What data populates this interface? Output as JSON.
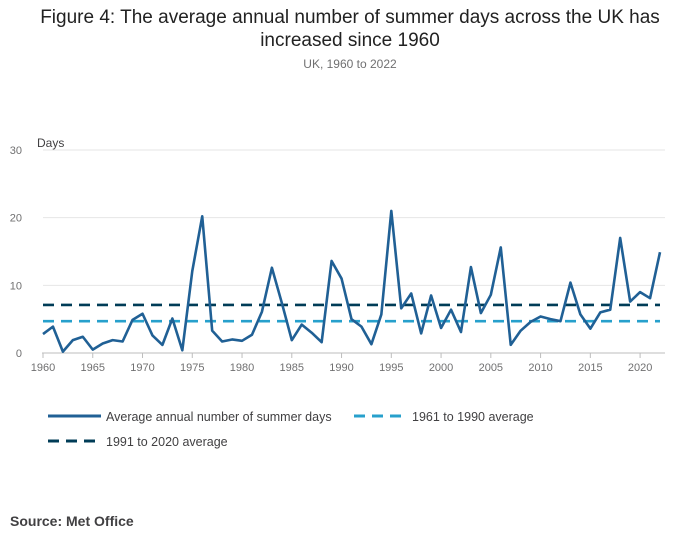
{
  "title": "Figure 4: The average annual number of summer days across the UK has increased since 1960",
  "subtitle": "UK, 1960 to 2022",
  "source": "Source: Met Office",
  "colors": {
    "series_main": "#206095",
    "series_1961_1990": "#27a0cc",
    "series_1991_2020": "#003c57",
    "grid": "#e6e6e6",
    "axis": "#bdbdbd"
  },
  "chart_data": {
    "type": "line",
    "title": "Figure 4: The average annual number of summer days across the UK has increased since 1960",
    "subtitle": "UK, 1960 to 2022",
    "ylabel": "Days",
    "xlabel": "",
    "ylim": [
      0,
      30
    ],
    "xlim": [
      1960,
      2022
    ],
    "yticks": [
      0,
      10,
      20,
      30
    ],
    "xticks": [
      1960,
      1965,
      1970,
      1975,
      1980,
      1985,
      1990,
      1995,
      2000,
      2005,
      2010,
      2015,
      2020
    ],
    "grid": true,
    "legend_position": "bottom",
    "x": [
      1960,
      1961,
      1962,
      1963,
      1964,
      1965,
      1966,
      1967,
      1968,
      1969,
      1970,
      1971,
      1972,
      1973,
      1974,
      1975,
      1976,
      1977,
      1978,
      1979,
      1980,
      1981,
      1982,
      1983,
      1984,
      1985,
      1986,
      1987,
      1988,
      1989,
      1990,
      1991,
      1992,
      1993,
      1994,
      1995,
      1996,
      1997,
      1998,
      1999,
      2000,
      2001,
      2002,
      2003,
      2004,
      2005,
      2006,
      2007,
      2008,
      2009,
      2010,
      2011,
      2012,
      2013,
      2014,
      2015,
      2016,
      2017,
      2018,
      2019,
      2020,
      2021,
      2022
    ],
    "series": [
      {
        "name": "Average annual number of summer days",
        "style": "solid",
        "values": [
          2.8,
          3.9,
          0.2,
          1.9,
          2.4,
          0.5,
          1.4,
          1.9,
          1.7,
          4.9,
          5.8,
          2.6,
          1.2,
          5.1,
          0.4,
          12.1,
          20.2,
          3.3,
          1.7,
          2.0,
          1.8,
          2.7,
          6.1,
          12.6,
          7.4,
          1.9,
          4.2,
          3.0,
          1.6,
          13.6,
          11.0,
          5.0,
          3.9,
          1.3,
          5.7,
          21.0,
          6.6,
          8.8,
          2.9,
          8.5,
          3.7,
          6.4,
          3.1,
          12.7,
          5.9,
          8.6,
          15.6,
          1.2,
          3.3,
          4.6,
          5.4,
          5.0,
          4.7,
          10.4,
          5.7,
          3.6,
          6.0,
          6.4,
          17.0,
          7.6,
          9.0,
          8.1,
          14.9
        ]
      },
      {
        "name": "1961 to 1990 average",
        "style": "dashed",
        "values": [
          4.7,
          4.7,
          4.7,
          4.7,
          4.7,
          4.7,
          4.7,
          4.7,
          4.7,
          4.7,
          4.7,
          4.7,
          4.7,
          4.7,
          4.7,
          4.7,
          4.7,
          4.7,
          4.7,
          4.7,
          4.7,
          4.7,
          4.7,
          4.7,
          4.7,
          4.7,
          4.7,
          4.7,
          4.7,
          4.7,
          4.7,
          4.7,
          4.7,
          4.7,
          4.7,
          4.7,
          4.7,
          4.7,
          4.7,
          4.7,
          4.7,
          4.7,
          4.7,
          4.7,
          4.7,
          4.7,
          4.7,
          4.7,
          4.7,
          4.7,
          4.7,
          4.7,
          4.7,
          4.7,
          4.7,
          4.7,
          4.7,
          4.7,
          4.7,
          4.7,
          4.7,
          4.7,
          4.7
        ]
      },
      {
        "name": "1991 to 2020 average",
        "style": "dashed",
        "values": [
          7.1,
          7.1,
          7.1,
          7.1,
          7.1,
          7.1,
          7.1,
          7.1,
          7.1,
          7.1,
          7.1,
          7.1,
          7.1,
          7.1,
          7.1,
          7.1,
          7.1,
          7.1,
          7.1,
          7.1,
          7.1,
          7.1,
          7.1,
          7.1,
          7.1,
          7.1,
          7.1,
          7.1,
          7.1,
          7.1,
          7.1,
          7.1,
          7.1,
          7.1,
          7.1,
          7.1,
          7.1,
          7.1,
          7.1,
          7.1,
          7.1,
          7.1,
          7.1,
          7.1,
          7.1,
          7.1,
          7.1,
          7.1,
          7.1,
          7.1,
          7.1,
          7.1,
          7.1,
          7.1,
          7.1,
          7.1,
          7.1,
          7.1,
          7.1,
          7.1,
          7.1,
          7.1,
          7.1
        ]
      }
    ]
  }
}
